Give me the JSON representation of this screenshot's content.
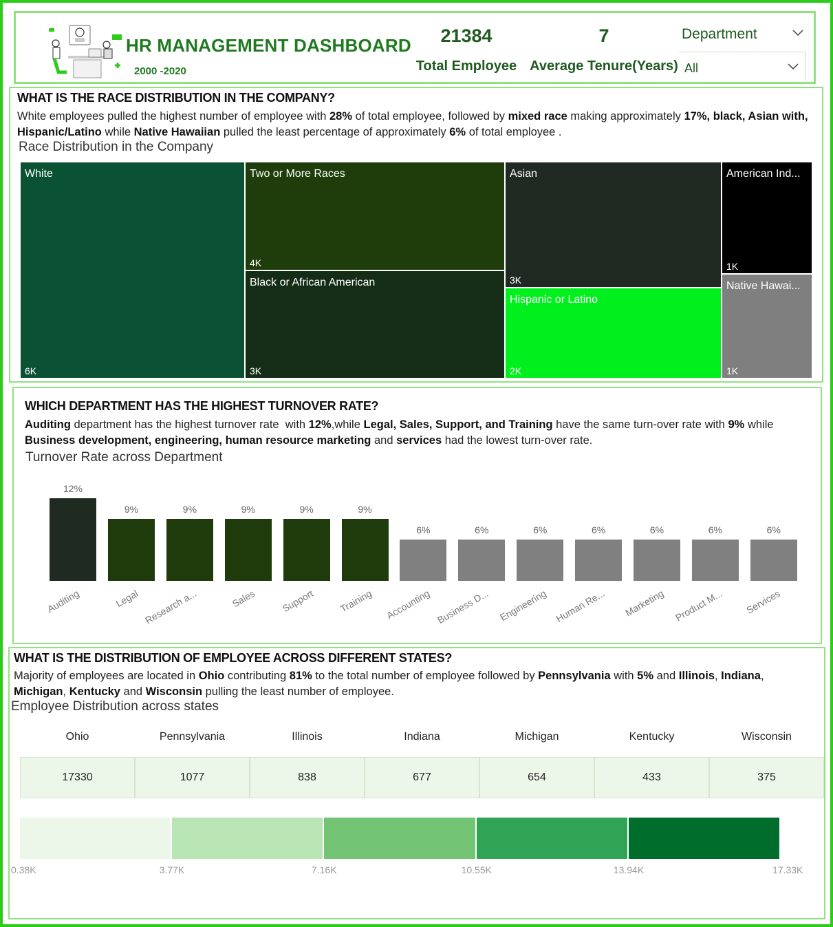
{
  "header": {
    "title": "HR MANAGEMENT DASHBOARD",
    "years": "2000 -2020",
    "total_employee_value": "21384",
    "total_employee_label": "Total Employee",
    "avg_tenure_value": "7",
    "avg_tenure_label": "Average Tenure(Years)",
    "department_label": "Department",
    "department_selected": "All"
  },
  "race": {
    "question": "WHAT IS THE RACE DISTRIBUTION IN THE COMPANY?",
    "chart_title": "Race Distribution in the Company"
  },
  "turnover": {
    "question": "WHICH DEPARTMENT HAS THE HIGHEST TURNOVER RATE?",
    "chart_title": "Turnover Rate across Department"
  },
  "states": {
    "question": "WHAT IS THE DISTRIBUTION OF EMPLOYEE ACROSS DIFFERENT STATES?",
    "chart_title": "Employee Distribution across states"
  },
  "colors": {
    "accent_green": "#2ecc1a",
    "panel_border": "#8fe37f",
    "title_green": "#1f7a1f"
  },
  "chart_data": [
    {
      "type": "treemap",
      "title": "Race Distribution in the Company",
      "items": [
        {
          "name": "White",
          "label": "White",
          "value_label": "6K",
          "value": 6000,
          "color": "#0b5235"
        },
        {
          "name": "Two or More Races",
          "label": "Two or More Races",
          "value_label": "4K",
          "value": 4000,
          "color": "#1e3d0b"
        },
        {
          "name": "Black or African American",
          "label": "Black or African American",
          "value_label": "3K",
          "value": 3000,
          "color": "#152d16"
        },
        {
          "name": "Asian",
          "label": "Asian",
          "value_label": "3K",
          "value": 3000,
          "color": "#202a22"
        },
        {
          "name": "Hispanic or Latino",
          "label": "Hispanic or Latino",
          "value_label": "2K",
          "value": 2000,
          "color": "#00f01e"
        },
        {
          "name": "American Indian",
          "label": "American Ind...",
          "value_label": "1K",
          "value": 1000,
          "color": "#000000"
        },
        {
          "name": "Native Hawaiian",
          "label": "Native Hawai...",
          "value_label": "1K",
          "value": 1000,
          "color": "#7f7f7f"
        }
      ]
    },
    {
      "type": "bar",
      "title": "Turnover Rate across Department",
      "categories": [
        "Auditing",
        "Legal",
        "Research a...",
        "Sales",
        "Support",
        "Training",
        "Accounting",
        "Business D...",
        "Engineering",
        "Human Re...",
        "Marketing",
        "Product M...",
        "Services"
      ],
      "values": [
        12,
        9,
        9,
        9,
        9,
        9,
        6,
        6,
        6,
        6,
        6,
        6,
        6
      ],
      "value_labels": [
        "12%",
        "9%",
        "9%",
        "9%",
        "9%",
        "9%",
        "6%",
        "6%",
        "6%",
        "6%",
        "6%",
        "6%",
        "6%"
      ],
      "colors": [
        "#1f2b20",
        "#1f3a0b",
        "#1f3a0b",
        "#1f3a0b",
        "#1f3a0b",
        "#1f3a0b",
        "#808080",
        "#808080",
        "#808080",
        "#808080",
        "#808080",
        "#808080",
        "#808080"
      ],
      "ylim": [
        0,
        12
      ]
    },
    {
      "type": "table",
      "title": "Employee Distribution across states",
      "columns": [
        "Ohio",
        "Pennsylvania",
        "Illinois",
        "Indiana",
        "Michigan",
        "Kentucky",
        "Wisconsin"
      ],
      "values": [
        17330,
        1077,
        838,
        677,
        654,
        433,
        375
      ],
      "legend": {
        "ticks": [
          "0.38K",
          "3.77K",
          "7.16K",
          "10.55K",
          "13.94K",
          "17.33K"
        ],
        "colors": [
          "#edf7e9",
          "#b9e4b4",
          "#74c476",
          "#31a354",
          "#006d2c"
        ]
      }
    }
  ]
}
